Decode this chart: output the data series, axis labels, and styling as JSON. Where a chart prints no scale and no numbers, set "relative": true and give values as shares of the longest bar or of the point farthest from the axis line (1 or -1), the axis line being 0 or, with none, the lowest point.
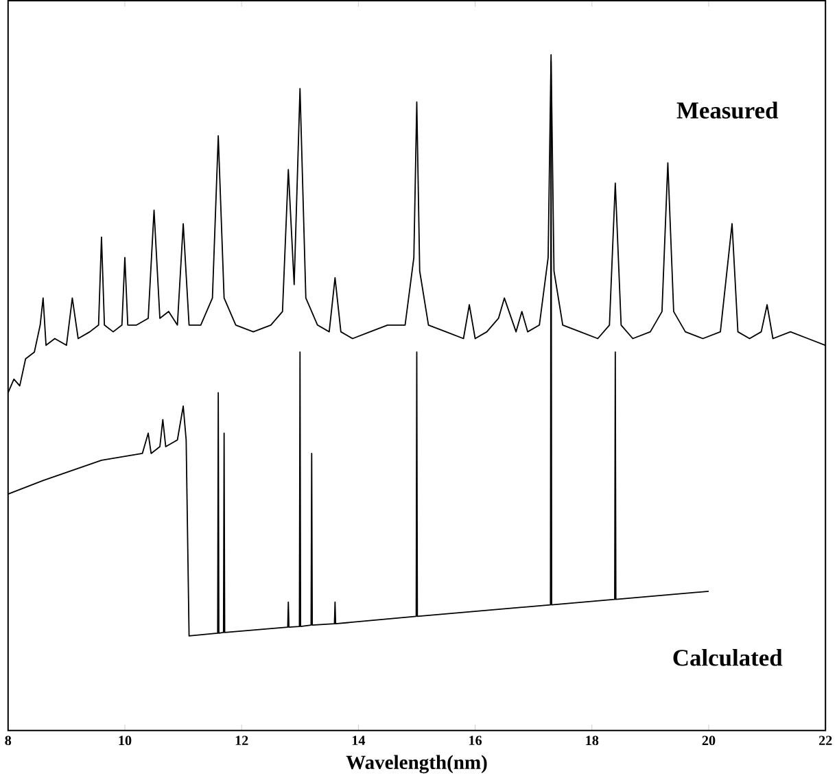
{
  "chart_data": {
    "type": "line",
    "xlabel": "Wavelength(nm)",
    "relative": true,
    "xlim": [
      8,
      22
    ],
    "xticks": [
      8,
      10,
      12,
      14,
      16,
      18,
      20,
      22
    ],
    "grid": false,
    "marker": "none",
    "line_style": "solid",
    "series": [
      {
        "name": "Measured",
        "color": "#000000",
        "x": [
          8.0,
          8.1,
          8.2,
          8.3,
          8.45,
          8.55,
          8.6,
          8.65,
          8.8,
          9.0,
          9.1,
          9.2,
          9.4,
          9.55,
          9.6,
          9.65,
          9.8,
          9.95,
          10.0,
          10.05,
          10.2,
          10.4,
          10.5,
          10.6,
          10.75,
          10.9,
          11.0,
          11.1,
          11.3,
          11.5,
          11.6,
          11.7,
          11.9,
          12.2,
          12.5,
          12.7,
          12.8,
          12.9,
          13.0,
          13.1,
          13.3,
          13.5,
          13.6,
          13.7,
          13.9,
          14.2,
          14.5,
          14.8,
          14.95,
          15.0,
          15.05,
          15.2,
          15.5,
          15.8,
          15.9,
          16.0,
          16.2,
          16.4,
          16.5,
          16.7,
          16.8,
          16.9,
          17.1,
          17.25,
          17.3,
          17.35,
          17.5,
          17.8,
          18.1,
          18.3,
          18.4,
          18.5,
          18.7,
          19.0,
          19.2,
          19.3,
          19.4,
          19.6,
          19.9,
          20.2,
          20.4,
          20.5,
          20.7,
          20.9,
          21.0,
          21.1,
          21.4,
          21.7,
          22.0
        ],
        "values": [
          0.5,
          0.52,
          0.51,
          0.55,
          0.56,
          0.6,
          0.64,
          0.57,
          0.58,
          0.57,
          0.64,
          0.58,
          0.59,
          0.6,
          0.73,
          0.6,
          0.59,
          0.6,
          0.7,
          0.6,
          0.6,
          0.61,
          0.77,
          0.61,
          0.62,
          0.6,
          0.75,
          0.6,
          0.6,
          0.64,
          0.88,
          0.64,
          0.6,
          0.59,
          0.6,
          0.62,
          0.83,
          0.66,
          0.95,
          0.64,
          0.6,
          0.59,
          0.67,
          0.59,
          0.58,
          0.59,
          0.6,
          0.6,
          0.7,
          0.93,
          0.68,
          0.6,
          0.59,
          0.58,
          0.63,
          0.58,
          0.59,
          0.61,
          0.64,
          0.59,
          0.62,
          0.59,
          0.6,
          0.7,
          1.0,
          0.68,
          0.6,
          0.59,
          0.58,
          0.6,
          0.81,
          0.6,
          0.58,
          0.59,
          0.62,
          0.84,
          0.62,
          0.59,
          0.58,
          0.59,
          0.75,
          0.59,
          0.58,
          0.59,
          0.63,
          0.58,
          0.59,
          0.58,
          0.57
        ]
      },
      {
        "name": "Calculated",
        "color": "#000000",
        "x": [
          8.0,
          8.6,
          9.6,
          10.3,
          10.4,
          10.45,
          10.6,
          10.65,
          10.7,
          10.9,
          11.0,
          11.05,
          11.1,
          11.59,
          11.6,
          11.61,
          11.69,
          11.7,
          11.71,
          12.79,
          12.8,
          12.81,
          12.99,
          13.0,
          13.01,
          13.19,
          13.2,
          13.21,
          13.59,
          13.6,
          13.61,
          14.99,
          15.0,
          15.01,
          17.29,
          17.3,
          17.31,
          18.39,
          18.4,
          18.41,
          20.0
        ],
        "values": [
          0.35,
          0.37,
          0.4,
          0.41,
          0.44,
          0.41,
          0.42,
          0.46,
          0.42,
          0.43,
          0.48,
          0.43,
          0.14,
          0.144,
          0.5,
          0.144,
          0.145,
          0.44,
          0.145,
          0.153,
          0.19,
          0.153,
          0.154,
          0.56,
          0.154,
          0.156,
          0.41,
          0.156,
          0.158,
          0.19,
          0.158,
          0.169,
          0.56,
          0.169,
          0.186,
          0.99,
          0.186,
          0.194,
          0.56,
          0.194,
          0.206
        ]
      }
    ]
  }
}
